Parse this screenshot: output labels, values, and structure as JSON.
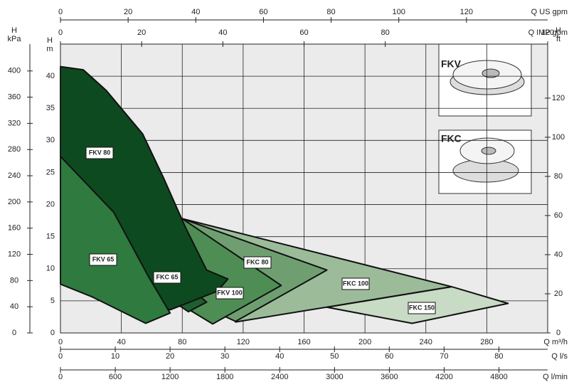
{
  "chart_data": {
    "type": "area-polygons",
    "xlabel": "Q m³/h",
    "ylabel": [
      "H",
      "m"
    ],
    "xlim": [
      0,
      320
    ],
    "xticks": [
      0,
      40,
      80,
      120,
      160,
      200,
      240,
      280
    ],
    "ylim": [
      0,
      45
    ],
    "yticks": [
      0,
      5,
      10,
      15,
      20,
      25,
      30,
      35,
      40
    ],
    "grid": true,
    "extra_axes": [
      {
        "position": "top",
        "label": [
          "Q US gpm"
        ],
        "lim": [
          0,
          144
        ],
        "ticks": [
          0,
          20,
          40,
          60,
          80,
          100,
          120
        ]
      },
      {
        "position": "top",
        "label": [
          "Q IMP gpm"
        ],
        "lim": [
          0,
          120
        ],
        "ticks": [
          0,
          20,
          40,
          60,
          80,
          120
        ]
      },
      {
        "position": "bottom",
        "label": [
          "Q l/s"
        ],
        "lim": [
          0,
          88.9
        ],
        "ticks": [
          0,
          10,
          20,
          30,
          40,
          50,
          60,
          70,
          80
        ]
      },
      {
        "position": "bottom",
        "label": [
          "Q l/min"
        ],
        "lim": [
          0,
          5333
        ],
        "ticks": [
          0,
          600,
          1200,
          1800,
          2400,
          3000,
          3600,
          4200,
          4800
        ]
      },
      {
        "position": "left",
        "label": [
          "H",
          "kPa"
        ],
        "lim": [
          0,
          441
        ],
        "ticks": [
          0,
          40,
          80,
          120,
          160,
          200,
          240,
          280,
          320,
          360,
          400
        ]
      },
      {
        "position": "right",
        "label": [
          "H",
          "ft"
        ],
        "lim": [
          0,
          147.6
        ],
        "ticks": [
          0,
          20,
          40,
          60,
          80,
          100,
          120
        ]
      }
    ],
    "series": [
      {
        "name": "FKC 150",
        "color": "#c8dbc4",
        "x": [
          175,
          257,
          294,
          231
        ],
        "y": [
          4,
          7.2,
          4.6,
          1.5
        ]
      },
      {
        "name": "FKC 100",
        "color": "#9cbc99",
        "x": [
          80,
          257,
          115
        ],
        "y": [
          17.8,
          7.2,
          1.7
        ]
      },
      {
        "name": "FKC 80",
        "color": "#6f9f71",
        "x": [
          80,
          175,
          115,
          95
        ],
        "y": [
          17.8,
          9.8,
          1.8,
          4
        ]
      },
      {
        "name": "FKV 100",
        "color": "#4e8e55",
        "x": [
          80,
          145,
          100,
          75
        ],
        "y": [
          17.8,
          7.4,
          1.4,
          5
        ]
      },
      {
        "name": "FKC 65",
        "color": "#1e5f30",
        "x": [
          0,
          35,
          65,
          96,
          84,
          55,
          0
        ],
        "y": [
          27,
          19,
          11,
          4.8,
          3.3,
          8,
          25
        ]
      },
      {
        "name": "FKV 80",
        "color": "#0e4a1f",
        "x": [
          0,
          15,
          30,
          54,
          68,
          82,
          96,
          110,
          103,
          72,
          40,
          0
        ],
        "y": [
          41.5,
          41,
          37.8,
          31,
          24,
          16.5,
          9.8,
          8.4,
          6.5,
          3.6,
          7,
          9.3
        ]
      },
      {
        "name": "FKV 65",
        "color": "#2e7a3f",
        "x": [
          0,
          35,
          58,
          72,
          56,
          21,
          0
        ],
        "y": [
          27.5,
          18.8,
          8.7,
          3.1,
          1.5,
          5.6,
          7.6
        ]
      }
    ],
    "insets": [
      {
        "label": "FKV"
      },
      {
        "label": "FKC"
      }
    ]
  }
}
